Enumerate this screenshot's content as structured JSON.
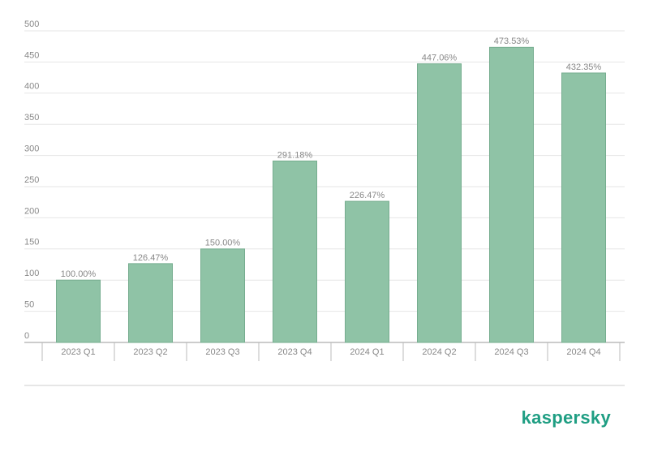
{
  "chart_data": {
    "type": "bar",
    "categories": [
      "2023 Q1",
      "2023 Q2",
      "2023 Q3",
      "2023 Q4",
      "2024 Q1",
      "2024 Q2",
      "2024 Q3",
      "2024 Q4"
    ],
    "values": [
      100.0,
      126.47,
      150.0,
      291.18,
      226.47,
      447.06,
      473.53,
      432.35
    ],
    "value_labels": [
      "100.00%",
      "126.47%",
      "150.00%",
      "291.18%",
      "226.47%",
      "447.06%",
      "473.53%",
      "432.35%"
    ],
    "color": "#8fc3a6",
    "ylim": [
      0,
      500
    ],
    "yticks": [
      0,
      50,
      100,
      150,
      200,
      250,
      300,
      350,
      400,
      450,
      500
    ],
    "grid": true
  },
  "brand": "kaspersky"
}
